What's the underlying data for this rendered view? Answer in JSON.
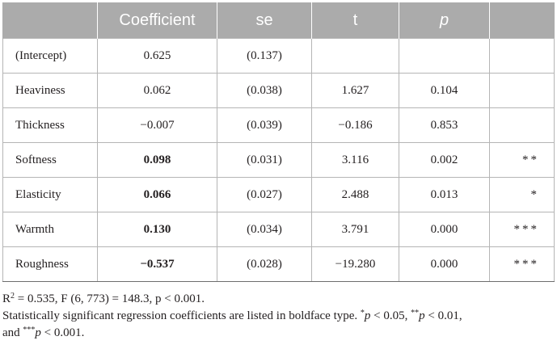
{
  "table": {
    "headers": [
      "",
      "Coefficient",
      "se",
      "t",
      "p",
      ""
    ],
    "rows": [
      {
        "term": "(Intercept)",
        "coefficient": "0.625",
        "se": "(0.137)",
        "t": "",
        "p": "",
        "sig": "",
        "bold": false
      },
      {
        "term": "Heaviness",
        "coefficient": "0.062",
        "se": "(0.038)",
        "t": "1.627",
        "p": "0.104",
        "sig": "",
        "bold": false
      },
      {
        "term": "Thickness",
        "coefficient": "−0.007",
        "se": "(0.039)",
        "t": "−0.186",
        "p": "0.853",
        "sig": "",
        "bold": false
      },
      {
        "term": "Softness",
        "coefficient": "0.098",
        "se": "(0.031)",
        "t": "3.116",
        "p": "0.002",
        "sig": "**",
        "bold": true
      },
      {
        "term": "Elasticity",
        "coefficient": "0.066",
        "se": "(0.027)",
        "t": "2.488",
        "p": "0.013",
        "sig": "*",
        "bold": true
      },
      {
        "term": "Warmth",
        "coefficient": "0.130",
        "se": "(0.034)",
        "t": "3.791",
        "p": "0.000",
        "sig": "***",
        "bold": true
      },
      {
        "term": "Roughness",
        "coefficient": "−0.537",
        "se": "(0.028)",
        "t": "−19.280",
        "p": "0.000",
        "sig": "***",
        "bold": true
      }
    ]
  },
  "notes": {
    "r2_prefix": "R",
    "r2_exp": "2",
    "r2_rest": " = 0.535, F (6, 773) = 148.3, p < 0.001.",
    "sig_text": "Statistically significant regression coefficients are listed in boldface type. ",
    "star1": "*",
    "p_label": "p",
    "thr1": " < 0.05, ",
    "star2": "**",
    "thr2": " < 0.01,",
    "and_text": "and ",
    "star3": "***",
    "thr3": " < 0.001."
  },
  "colors": {
    "header_bg": "#ababab",
    "header_text": "#ffffff",
    "border": "#b5b5b5"
  }
}
